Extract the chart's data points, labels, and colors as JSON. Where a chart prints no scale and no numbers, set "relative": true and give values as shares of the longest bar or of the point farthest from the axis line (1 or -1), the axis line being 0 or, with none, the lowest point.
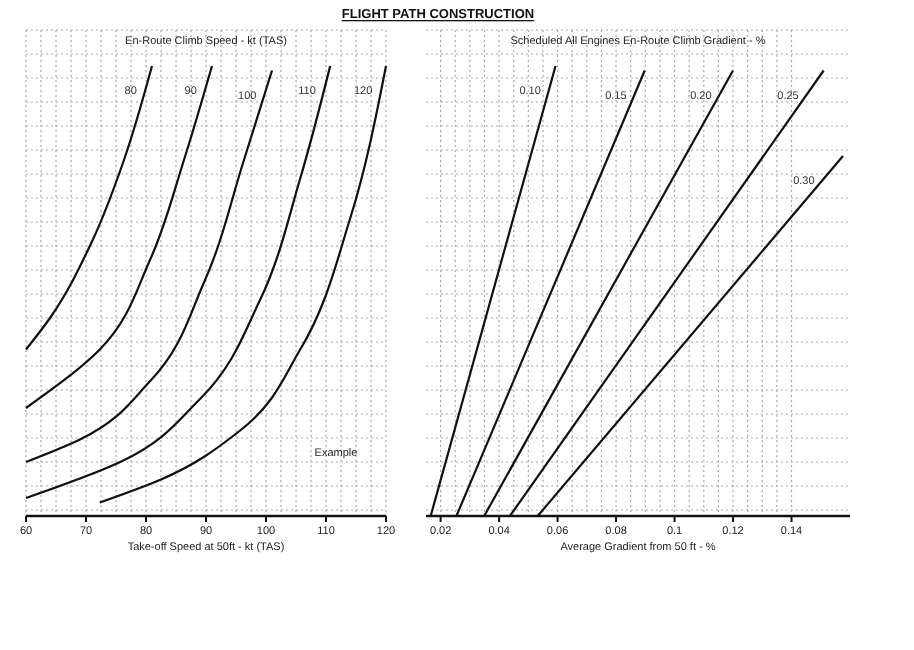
{
  "chart_data": [
    {
      "type": "line",
      "title": "FLIGHT PATH CONSTRUCTION",
      "legend_title": "En-Route Climb Speed - kt (TAS)",
      "xlabel": "Take-off Speed at 50ft - kt (TAS)",
      "relative": true,
      "xlim": [
        60,
        120
      ],
      "xticks": [
        60,
        70,
        80,
        90,
        100,
        110,
        120
      ],
      "grid": true,
      "annotations": [
        "Example"
      ],
      "series": [
        {
          "name": "80",
          "color": "#111111",
          "x": [
            60,
            64,
            71,
            76.3,
            81
          ],
          "values": [
            0.37,
            0.44,
            0.61,
            0.79,
            1.0
          ]
        },
        {
          "name": "90",
          "color": "#111111",
          "x": [
            60,
            72.3,
            80.7,
            86.3,
            91
          ],
          "values": [
            0.24,
            0.37,
            0.57,
            0.79,
            1.0
          ]
        },
        {
          "name": "100",
          "color": "#111111",
          "x": [
            60,
            69,
            80.7,
            89.7,
            96.3,
            101
          ],
          "values": [
            0.12,
            0.17,
            0.3,
            0.52,
            0.79,
            0.99
          ]
        },
        {
          "name": "110",
          "color": "#111111",
          "x": [
            60,
            75.7,
            89,
            99,
            105.7,
            110.7
          ],
          "values": [
            0.04,
            0.12,
            0.26,
            0.48,
            0.75,
            1.0
          ]
        },
        {
          "name": "120",
          "color": "#111111",
          "x": [
            72.3,
            82.3,
            95.7,
            105.7,
            114,
            120
          ],
          "values": [
            0.03,
            0.08,
            0.19,
            0.37,
            0.66,
            1.0
          ]
        }
      ]
    },
    {
      "type": "line",
      "legend_title": "Scheduled All Engines En-Route Climb Gradient - %",
      "xlabel": "Average Gradient from 50 ft - %",
      "relative": true,
      "xlim": [
        0.015,
        0.16
      ],
      "xticks": [
        0.02,
        0.04,
        0.06,
        0.08,
        0.1,
        0.12,
        0.14
      ],
      "grid": true,
      "series": [
        {
          "name": "0.10",
          "color": "#111111",
          "x": [
            0.0166,
            0.0593
          ],
          "values": [
            0,
            1.0
          ]
        },
        {
          "name": "0.15",
          "color": "#111111",
          "x": [
            0.0254,
            0.0898
          ],
          "values": [
            0,
            0.99
          ]
        },
        {
          "name": "0.20",
          "color": "#111111",
          "x": [
            0.0349,
            0.12
          ],
          "values": [
            0,
            0.99
          ]
        },
        {
          "name": "0.25",
          "color": "#111111",
          "x": [
            0.0437,
            0.151
          ],
          "values": [
            0,
            0.99
          ]
        },
        {
          "name": "0.30",
          "color": "#111111",
          "x": [
            0.0532,
            0.1576
          ],
          "values": [
            0,
            0.8
          ]
        }
      ]
    }
  ]
}
